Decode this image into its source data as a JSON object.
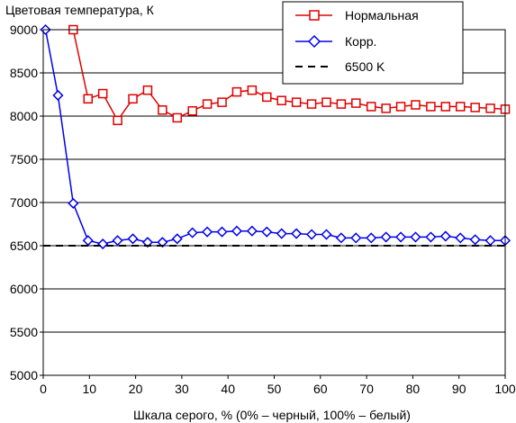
{
  "chart_data": {
    "type": "line",
    "ylabel": "Цветовая температура, К",
    "xlabel": "Шкала серого, % (0% – черный, 100% – белый)",
    "xlim": [
      0,
      100
    ],
    "ylim": [
      5000,
      9000
    ],
    "xticks": [
      0,
      10,
      20,
      30,
      40,
      50,
      60,
      70,
      80,
      90,
      100
    ],
    "yticks": [
      5000,
      5500,
      6000,
      6500,
      7000,
      7500,
      8000,
      8500,
      9000
    ],
    "grid": "horizontal",
    "legend_position": "top-right",
    "series": [
      {
        "name": "Нормальная",
        "color": "#e00000",
        "marker": "square",
        "x": [
          6.5,
          9.7,
          12.9,
          16.1,
          19.4,
          22.6,
          25.8,
          29.0,
          32.3,
          35.5,
          38.7,
          41.9,
          45.2,
          48.4,
          51.6,
          54.8,
          58.1,
          61.3,
          64.5,
          67.7,
          71.0,
          74.2,
          77.4,
          80.6,
          83.9,
          87.1,
          90.3,
          93.5,
          96.8,
          100
        ],
        "y": [
          9000,
          8200,
          8260,
          7950,
          8200,
          8300,
          8070,
          7980,
          8060,
          8140,
          8160,
          8280,
          8300,
          8220,
          8180,
          8160,
          8140,
          8160,
          8140,
          8150,
          8110,
          8090,
          8110,
          8130,
          8110,
          8110,
          8110,
          8100,
          8090,
          8080
        ]
      },
      {
        "name": "Корр.",
        "color": "#0000ee",
        "marker": "diamond",
        "x": [
          0.5,
          3.2,
          6.5,
          9.7,
          12.9,
          16.1,
          19.4,
          22.6,
          25.8,
          29.0,
          32.3,
          35.5,
          38.7,
          41.9,
          45.2,
          48.4,
          51.6,
          54.8,
          58.1,
          61.3,
          64.5,
          67.7,
          71.0,
          74.2,
          77.4,
          80.6,
          83.9,
          87.1,
          90.3,
          93.5,
          96.8,
          100
        ],
        "y": [
          9050,
          8240,
          6990,
          6560,
          6520,
          6560,
          6580,
          6540,
          6540,
          6580,
          6650,
          6660,
          6660,
          6670,
          6670,
          6660,
          6640,
          6640,
          6630,
          6630,
          6590,
          6590,
          6590,
          6600,
          6600,
          6600,
          6600,
          6610,
          6590,
          6570,
          6560,
          6560
        ]
      },
      {
        "name": "6500 K",
        "color": "#000000",
        "style": "dashed",
        "x": [
          0,
          100
        ],
        "y": [
          6500,
          6500
        ]
      }
    ]
  }
}
